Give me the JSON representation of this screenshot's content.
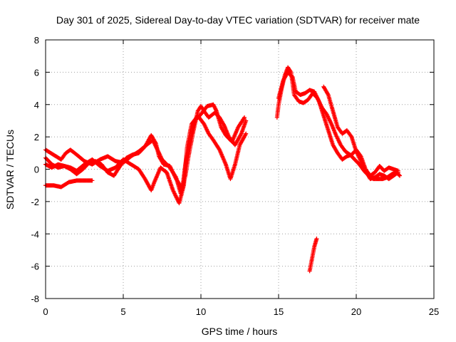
{
  "chart_data": {
    "type": "scatter",
    "title": "Day 301 of 2025, Sidereal Day-to-day VTEC variation (SDTVAR) for receiver mate",
    "xlabel": "GPS time / hours",
    "ylabel": "SDTVAR / TECUs",
    "xlim": [
      0,
      25
    ],
    "ylim": [
      -8,
      8
    ],
    "xticks": [
      0,
      5,
      10,
      15,
      20,
      25
    ],
    "yticks": [
      -8,
      -6,
      -4,
      -2,
      0,
      2,
      4,
      6,
      8
    ],
    "xtick_labels": [
      "0",
      "5",
      "10",
      "15",
      "20",
      "25"
    ],
    "ytick_labels": [
      "-8",
      "-6",
      "-4",
      "-2",
      "0",
      "2",
      "4",
      "6",
      "8"
    ],
    "grid": true,
    "marker": "+",
    "color": "#ff0000",
    "series": [
      {
        "name": "track-1",
        "points": [
          [
            0.0,
            1.2
          ],
          [
            0.5,
            0.9
          ],
          [
            1.0,
            0.6
          ],
          [
            1.3,
            1.0
          ],
          [
            1.6,
            1.2
          ],
          [
            2.0,
            0.9
          ],
          [
            2.5,
            0.5
          ],
          [
            3.0,
            0.3
          ],
          [
            3.5,
            0.6
          ],
          [
            4.0,
            0.8
          ],
          [
            4.5,
            0.5
          ],
          [
            5.0,
            0.4
          ],
          [
            5.5,
            0.8
          ],
          [
            6.0,
            1.1
          ],
          [
            6.5,
            1.5
          ],
          [
            6.9,
            1.8
          ],
          [
            7.2,
            1.2
          ],
          [
            7.5,
            0.6
          ],
          [
            8.0,
            0.1
          ],
          [
            8.4,
            -0.5
          ],
          [
            8.7,
            -1.5
          ],
          [
            9.0,
            -0.4
          ],
          [
            9.2,
            0.8
          ],
          [
            9.5,
            2.3
          ],
          [
            9.8,
            3.6
          ],
          [
            10.0,
            3.9
          ],
          [
            10.2,
            3.6
          ],
          [
            10.5,
            3.2
          ],
          [
            10.9,
            3.5
          ],
          [
            11.2,
            3.2
          ],
          [
            11.5,
            2.7
          ],
          [
            11.8,
            2.0
          ],
          [
            12.2,
            1.5
          ],
          [
            12.6,
            2.2
          ],
          [
            12.9,
            3.0
          ]
        ]
      },
      {
        "name": "track-2",
        "points": [
          [
            0.0,
            0.7
          ],
          [
            0.4,
            0.3
          ],
          [
            0.8,
            0.1
          ],
          [
            1.2,
            0.2
          ],
          [
            1.6,
            0.1
          ],
          [
            2.0,
            -0.1
          ],
          [
            2.5,
            0.3
          ],
          [
            3.0,
            0.6
          ],
          [
            3.5,
            0.2
          ],
          [
            4.0,
            -0.1
          ],
          [
            4.5,
            0.1
          ],
          [
            5.0,
            0.6
          ],
          [
            5.5,
            0.3
          ],
          [
            6.0,
            0.0
          ],
          [
            6.4,
            -0.6
          ],
          [
            6.8,
            -1.3
          ],
          [
            7.0,
            -0.8
          ],
          [
            7.4,
            0.1
          ],
          [
            7.8,
            -0.2
          ],
          [
            8.2,
            -1.3
          ],
          [
            8.6,
            -2.1
          ],
          [
            8.9,
            -1.0
          ],
          [
            9.1,
            1.3
          ],
          [
            9.4,
            2.8
          ],
          [
            9.8,
            3.3
          ],
          [
            10.2,
            2.8
          ],
          [
            10.5,
            2.2
          ],
          [
            10.8,
            1.8
          ],
          [
            11.2,
            1.2
          ],
          [
            11.6,
            0.3
          ],
          [
            11.9,
            -0.6
          ],
          [
            12.2,
            0.3
          ],
          [
            12.5,
            1.5
          ],
          [
            12.9,
            2.2
          ]
        ]
      },
      {
        "name": "track-3",
        "points": [
          [
            0.0,
            -1.0
          ],
          [
            0.5,
            -1.0
          ],
          [
            1.0,
            -1.1
          ],
          [
            1.5,
            -0.8
          ],
          [
            2.0,
            -0.7
          ],
          [
            2.5,
            -0.7
          ],
          [
            3.0,
            -0.7
          ]
        ]
      },
      {
        "name": "track-4",
        "points": [
          [
            0.0,
            0.3
          ],
          [
            0.4,
            0.1
          ],
          [
            0.8,
            0.3
          ],
          [
            1.2,
            0.2
          ],
          [
            1.6,
            0.0
          ],
          [
            2.0,
            -0.3
          ],
          [
            2.4,
            0.0
          ],
          [
            2.8,
            0.4
          ],
          [
            3.2,
            0.5
          ],
          [
            3.6,
            0.3
          ],
          [
            4.0,
            -0.2
          ],
          [
            4.4,
            -0.4
          ],
          [
            4.8,
            0.2
          ],
          [
            5.2,
            0.7
          ],
          [
            5.6,
            0.9
          ],
          [
            6.0,
            1.0
          ],
          [
            6.4,
            1.4
          ],
          [
            6.8,
            2.1
          ],
          [
            7.1,
            1.6
          ],
          [
            7.3,
            0.8
          ],
          [
            7.6,
            0.3
          ],
          [
            8.0,
            0.2
          ],
          [
            8.4,
            -0.6
          ],
          [
            8.8,
            -1.2
          ],
          [
            9.0,
            0.3
          ],
          [
            9.3,
            1.8
          ],
          [
            9.6,
            3.0
          ],
          [
            10.0,
            3.4
          ],
          [
            10.4,
            3.9
          ],
          [
            10.8,
            4.0
          ],
          [
            11.0,
            3.6
          ],
          [
            11.3,
            2.6
          ],
          [
            11.6,
            2.1
          ],
          [
            12.0,
            1.7
          ],
          [
            12.4,
            2.6
          ],
          [
            12.8,
            3.2
          ]
        ]
      },
      {
        "name": "track-5",
        "points": [
          [
            14.9,
            3.2
          ],
          [
            15.0,
            4.0
          ],
          [
            15.2,
            5.0
          ],
          [
            15.4,
            5.8
          ],
          [
            15.6,
            6.3
          ],
          [
            15.8,
            6.0
          ],
          [
            16.0,
            4.6
          ],
          [
            16.3,
            4.2
          ],
          [
            16.6,
            4.1
          ],
          [
            16.9,
            4.3
          ],
          [
            17.2,
            4.7
          ],
          [
            17.5,
            4.4
          ],
          [
            17.8,
            3.8
          ],
          [
            18.1,
            3.4
          ],
          [
            18.4,
            2.8
          ],
          [
            18.7,
            2.1
          ],
          [
            19.0,
            1.5
          ],
          [
            19.3,
            1.1
          ],
          [
            19.6,
            0.9
          ],
          [
            19.9,
            0.6
          ],
          [
            20.2,
            0.3
          ],
          [
            20.5,
            -0.1
          ],
          [
            20.8,
            -0.4
          ],
          [
            21.1,
            -0.6
          ],
          [
            21.4,
            -0.6
          ],
          [
            21.7,
            -0.6
          ],
          [
            22.0,
            -0.5
          ],
          [
            22.3,
            -0.3
          ],
          [
            22.6,
            -0.2
          ],
          [
            22.8,
            -0.4
          ]
        ]
      },
      {
        "name": "track-6",
        "points": [
          [
            15.0,
            4.4
          ],
          [
            15.3,
            5.5
          ],
          [
            15.6,
            6.0
          ],
          [
            15.9,
            5.7
          ],
          [
            16.1,
            4.8
          ],
          [
            16.4,
            4.6
          ],
          [
            16.7,
            4.7
          ],
          [
            17.0,
            4.9
          ],
          [
            17.3,
            4.8
          ],
          [
            17.6,
            4.2
          ],
          [
            17.9,
            3.3
          ],
          [
            18.2,
            2.4
          ],
          [
            18.5,
            1.5
          ],
          [
            18.8,
            1.0
          ],
          [
            19.1,
            0.6
          ],
          [
            19.4,
            0.8
          ],
          [
            19.7,
            0.9
          ],
          [
            20.0,
            1.2
          ],
          [
            20.3,
            0.8
          ],
          [
            20.6,
            0.0
          ],
          [
            20.9,
            -0.4
          ],
          [
            21.2,
            -0.2
          ],
          [
            21.5,
            0.2
          ],
          [
            21.8,
            -0.1
          ],
          [
            22.1,
            0.1
          ],
          [
            22.4,
            0.0
          ],
          [
            22.7,
            -0.1
          ]
        ]
      },
      {
        "name": "track-7",
        "points": [
          [
            17.9,
            5.1
          ],
          [
            18.2,
            4.6
          ],
          [
            18.5,
            3.6
          ],
          [
            18.8,
            2.6
          ],
          [
            19.1,
            2.2
          ],
          [
            19.4,
            2.4
          ],
          [
            19.7,
            2.0
          ],
          [
            20.0,
            1.1
          ],
          [
            20.3,
            0.5
          ],
          [
            20.6,
            -0.1
          ],
          [
            20.9,
            -0.6
          ],
          [
            21.2,
            -0.5
          ],
          [
            21.5,
            -0.3
          ],
          [
            21.8,
            -0.4
          ],
          [
            22.1,
            -0.6
          ],
          [
            22.4,
            -0.4
          ],
          [
            22.7,
            -0.2
          ]
        ]
      },
      {
        "name": "track-8",
        "points": [
          [
            17.0,
            -6.3
          ],
          [
            17.1,
            -5.8
          ],
          [
            17.2,
            -5.3
          ],
          [
            17.3,
            -4.8
          ],
          [
            17.45,
            -4.3
          ]
        ]
      }
    ]
  }
}
